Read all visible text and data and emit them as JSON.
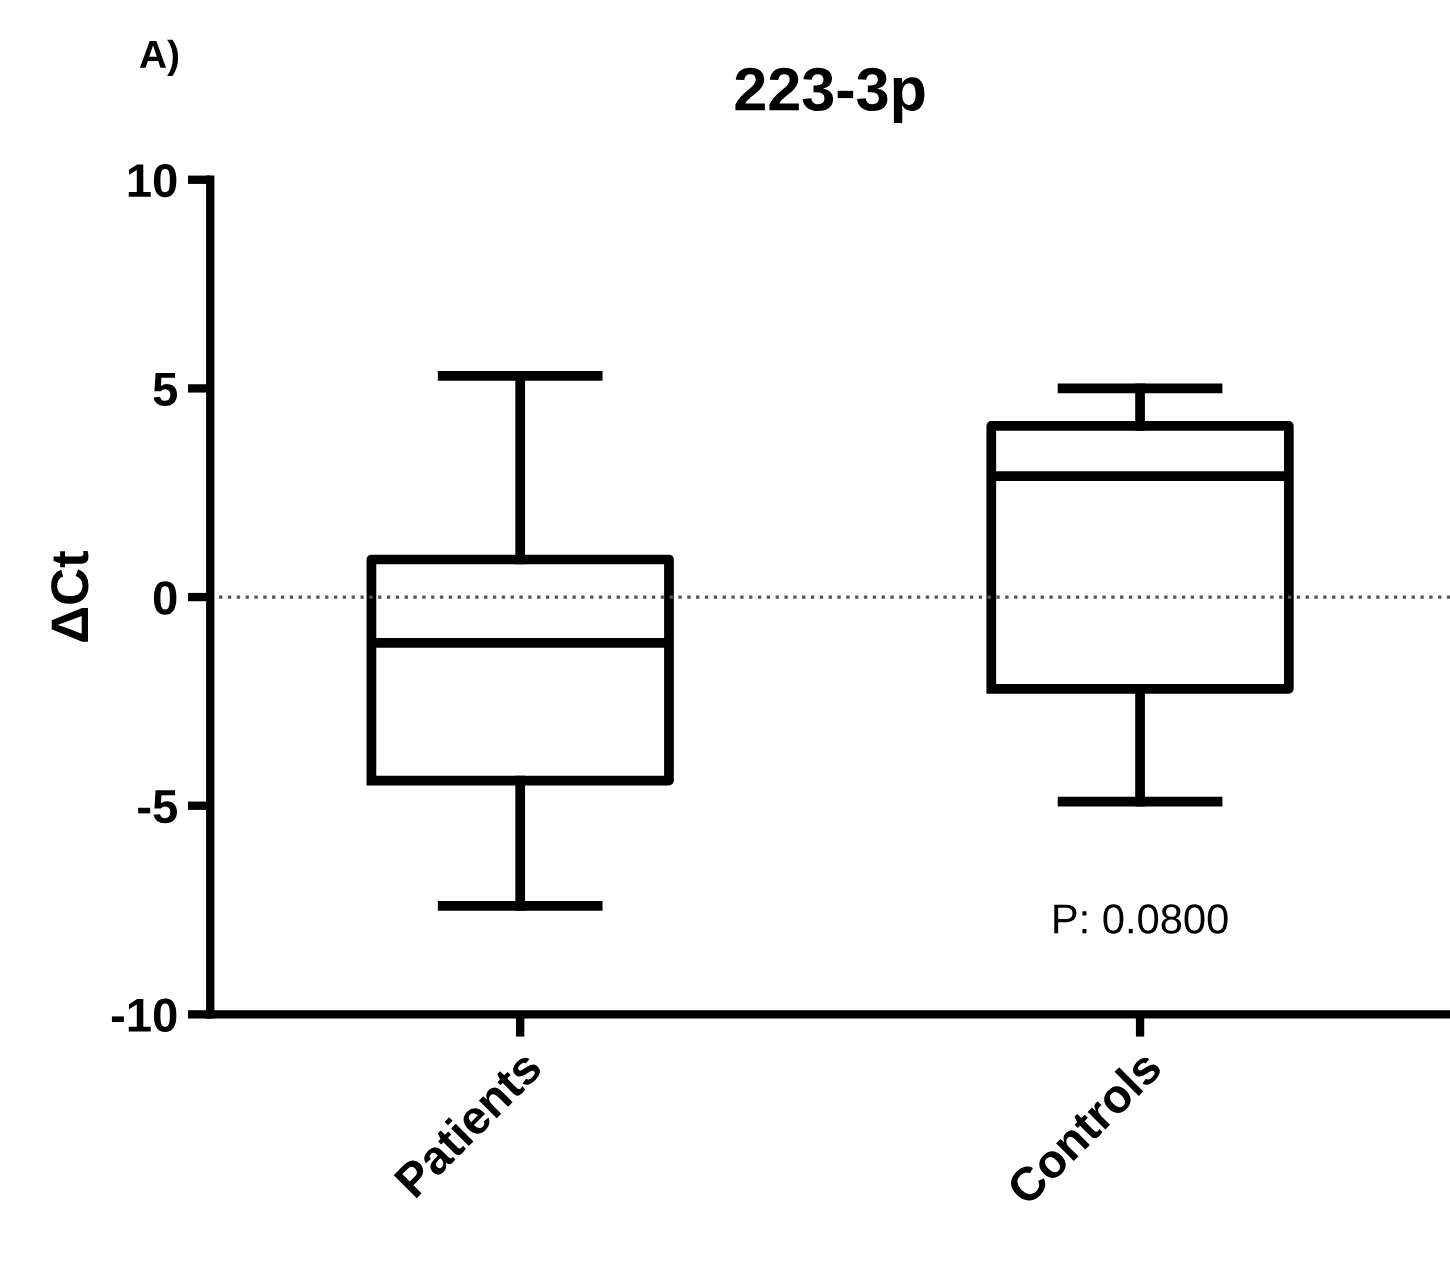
{
  "chart_data": {
    "type": "box",
    "title": "223-3p",
    "ylabel": "ΔCt",
    "categories": [
      "Patients",
      "Controls"
    ],
    "boxes": [
      {
        "low": -7.4,
        "q1": -4.4,
        "median": -1.1,
        "q3": 0.9,
        "high": 5.3
      },
      {
        "low": -4.9,
        "q1": -2.2,
        "median": 2.9,
        "q3": 4.1,
        "high": 5.0
      }
    ],
    "color": "#000000",
    "ylim": [
      -10,
      10
    ],
    "yticks": [
      -10,
      -5,
      0,
      5,
      10
    ],
    "ref_lines": [
      {
        "axis": "y",
        "value": 0,
        "label": null,
        "color": "#555555",
        "line_style": "dotted"
      }
    ],
    "annotations": [
      "A)",
      "P: 0.0800"
    ],
    "grid": false,
    "legend": false
  }
}
